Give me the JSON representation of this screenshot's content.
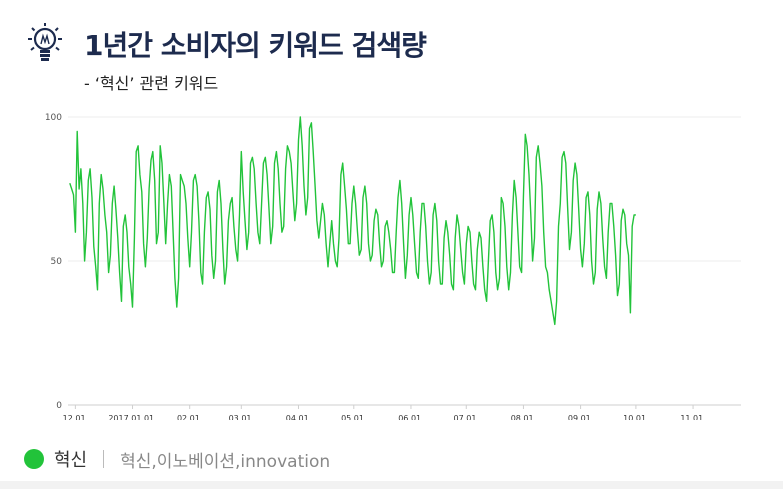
{
  "header": {
    "title": "1년간 소비자의 키워드 검색량",
    "subtitle": "- ‘혁신’ 관련 키워드",
    "icon": "light-bulb-icon"
  },
  "legend": {
    "series_name": "혁신",
    "terms": "혁신,이노베이션,innovation",
    "color": "#22c33a"
  },
  "chart_data": {
    "type": "line",
    "title": "",
    "xlabel": "",
    "ylabel": "",
    "ylim": [
      0,
      100
    ],
    "yticks": [
      "0",
      "50",
      "100"
    ],
    "grid": true,
    "xlim": [
      "2016-11-27",
      "2017-11-27"
    ],
    "xticks": [
      {
        "label": "12.01.",
        "date": "2016-12-01"
      },
      {
        "label": "2017.01.01.",
        "date": "2017-01-01"
      },
      {
        "label": "02.01.",
        "date": "2017-02-01"
      },
      {
        "label": "03.01.",
        "date": "2017-03-01"
      },
      {
        "label": "04.01.",
        "date": "2017-04-01"
      },
      {
        "label": "05.01.",
        "date": "2017-05-01"
      },
      {
        "label": "06.01.",
        "date": "2017-06-01"
      },
      {
        "label": "07.01.",
        "date": "2017-07-01"
      },
      {
        "label": "08.01.",
        "date": "2017-08-01"
      },
      {
        "label": "09.01.",
        "date": "2017-09-01"
      },
      {
        "label": "10.01.",
        "date": "2017-10-01"
      },
      {
        "label": "11.01.",
        "date": "2017-11-01"
      }
    ],
    "x_start": "2016-11-28",
    "x_step": "1 day",
    "series": [
      {
        "name": "혁신",
        "color": "#22c33a",
        "values": [
          77,
          75,
          73,
          60,
          95,
          75,
          82,
          70,
          50,
          60,
          78,
          82,
          72,
          55,
          48,
          40,
          70,
          80,
          75,
          66,
          60,
          46,
          52,
          70,
          76,
          68,
          58,
          46,
          36,
          62,
          66,
          60,
          48,
          42,
          34,
          58,
          88,
          90,
          80,
          74,
          56,
          48,
          58,
          75,
          85,
          88,
          78,
          56,
          60,
          90,
          84,
          70,
          56,
          70,
          80,
          76,
          60,
          44,
          34,
          44,
          80,
          78,
          76,
          70,
          58,
          48,
          60,
          78,
          80,
          76,
          64,
          46,
          42,
          60,
          72,
          74,
          68,
          52,
          44,
          50,
          74,
          78,
          70,
          54,
          42,
          48,
          64,
          70,
          72,
          62,
          54,
          50,
          66,
          88,
          74,
          64,
          54,
          60,
          84,
          86,
          82,
          70,
          60,
          56,
          70,
          84,
          86,
          80,
          68,
          56,
          62,
          84,
          88,
          82,
          70,
          60,
          62,
          82,
          90,
          88,
          84,
          74,
          64,
          70,
          92,
          100,
          90,
          76,
          66,
          72,
          96,
          98,
          88,
          76,
          64,
          58,
          64,
          70,
          66,
          56,
          48,
          56,
          64,
          56,
          50,
          48,
          58,
          80,
          84,
          76,
          68,
          56,
          56,
          70,
          76,
          70,
          60,
          52,
          54,
          72,
          76,
          70,
          56,
          50,
          52,
          64,
          68,
          66,
          56,
          48,
          50,
          62,
          64,
          60,
          54,
          46,
          46,
          60,
          72,
          78,
          70,
          56,
          44,
          52,
          66,
          72,
          66,
          56,
          46,
          44,
          60,
          70,
          70,
          62,
          50,
          42,
          46,
          66,
          70,
          64,
          50,
          42,
          42,
          58,
          64,
          60,
          52,
          42,
          40,
          58,
          66,
          62,
          54,
          46,
          42,
          56,
          62,
          60,
          50,
          42,
          40,
          54,
          60,
          58,
          48,
          40,
          36,
          50,
          64,
          66,
          60,
          46,
          40,
          44,
          72,
          70,
          62,
          48,
          40,
          46,
          66,
          78,
          72,
          60,
          48,
          46,
          72,
          94,
          90,
          80,
          66,
          50,
          58,
          86,
          90,
          84,
          76,
          60,
          48,
          46,
          40,
          36,
          32,
          28,
          36,
          62,
          70,
          86,
          88,
          84,
          68,
          54,
          60,
          78,
          84,
          80,
          68,
          54,
          48,
          56,
          72,
          74,
          66,
          50,
          42,
          46,
          68,
          74,
          70,
          58,
          48,
          44,
          60,
          70,
          70,
          62,
          52,
          38,
          42,
          64,
          68,
          66,
          56,
          52,
          32,
          62,
          66,
          66
        ]
      }
    ]
  }
}
